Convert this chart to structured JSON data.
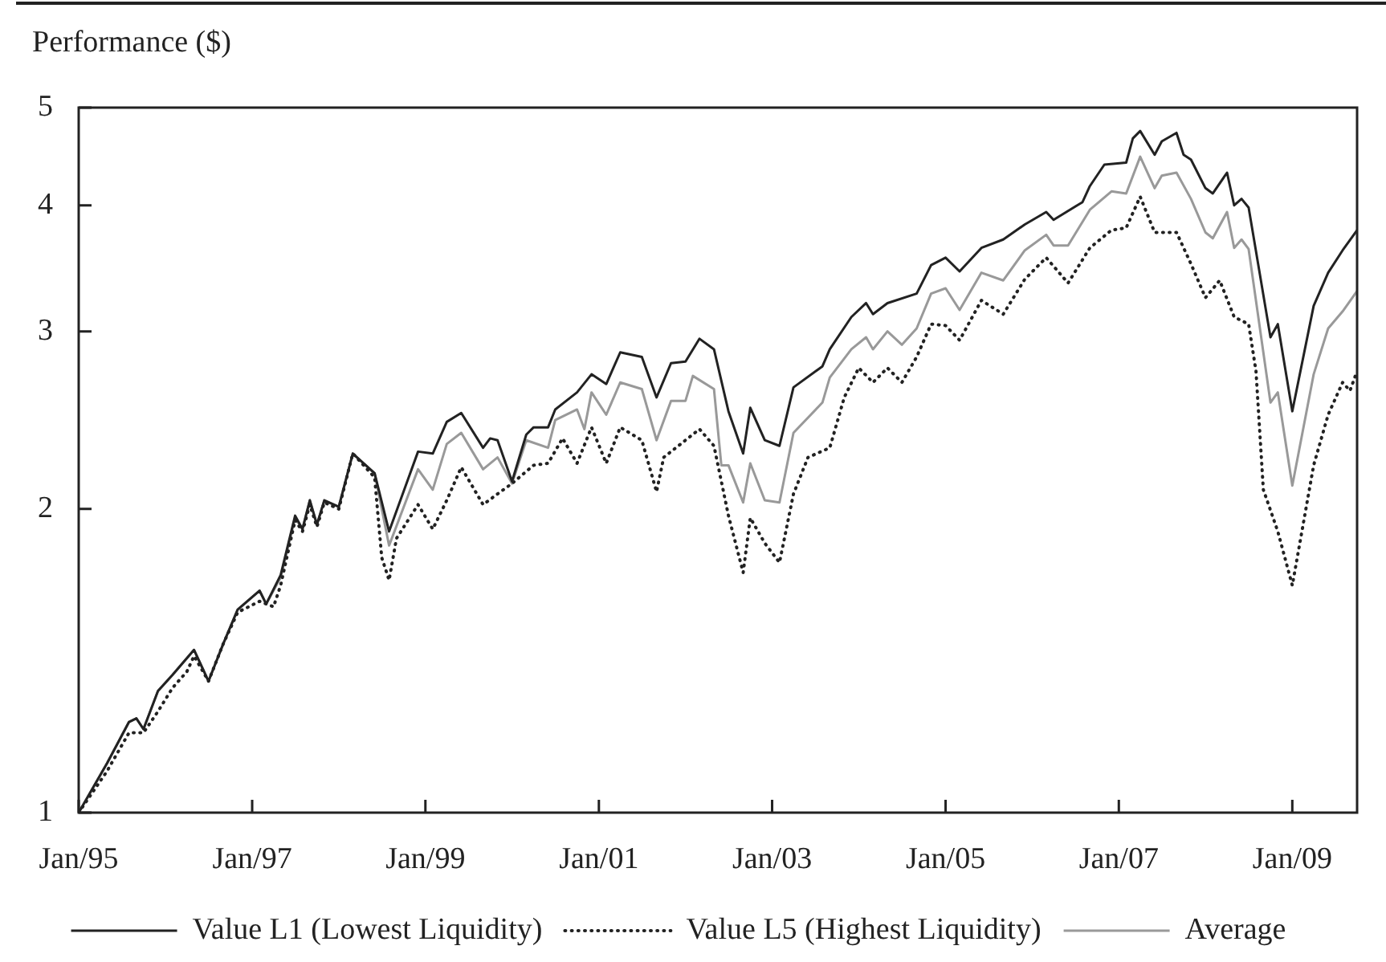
{
  "chart_data": {
    "type": "line",
    "ylabel": "Performance ($)",
    "log": "y",
    "legend": "bottom",
    "xlim": [
      "1995-01",
      "2009-10"
    ],
    "xticks": [
      {
        "value": "1995-01",
        "label": "Jan/95"
      },
      {
        "value": "1997-01",
        "label": "Jan/97"
      },
      {
        "value": "1999-01",
        "label": "Jan/99"
      },
      {
        "value": "2001-01",
        "label": "Jan/01"
      },
      {
        "value": "2003-01",
        "label": "Jan/03"
      },
      {
        "value": "2005-01",
        "label": "Jan/05"
      },
      {
        "value": "2007-01",
        "label": "Jan/07"
      },
      {
        "value": "2009-01",
        "label": "Jan/09"
      }
    ],
    "ylim": [
      1,
      5
    ],
    "yticks": [
      1,
      2,
      3,
      4,
      5
    ],
    "series": [
      {
        "name": "Value L1 (Lowest Liquidity)",
        "color": "#222222",
        "line_style": "solid",
        "x": [
          "1995-01",
          "1995-05",
          "1995-08",
          "1995-09",
          "1995-10",
          "1995-12",
          "1996-02",
          "1996-05",
          "1996-07",
          "1996-09",
          "1996-11",
          "1997-02",
          "1997-03",
          "1997-05",
          "1997-07",
          "1997-08",
          "1997-09",
          "1997-10",
          "1997-11",
          "1998-01",
          "1998-03",
          "1998-06",
          "1998-08",
          "1998-12",
          "1999-02",
          "1999-04",
          "1999-06",
          "1999-09",
          "1999-10",
          "1999-11",
          "2000-01",
          "2000-03",
          "2000-04",
          "2000-06",
          "2000-07",
          "2000-10",
          "2000-12",
          "2001-02",
          "2001-04",
          "2001-07",
          "2001-09",
          "2001-11",
          "2002-01",
          "2002-03",
          "2002-05",
          "2002-07",
          "2002-09",
          "2002-10",
          "2002-12",
          "2003-02",
          "2003-04",
          "2003-08",
          "2003-09",
          "2003-12",
          "2004-02",
          "2004-03",
          "2004-05",
          "2004-09",
          "2004-11",
          "2005-01",
          "2005-03",
          "2005-06",
          "2005-09",
          "2005-12",
          "2006-03",
          "2006-04",
          "2006-08",
          "2006-09",
          "2006-11",
          "2007-02",
          "2007-03",
          "2007-04",
          "2007-06",
          "2007-07",
          "2007-09",
          "2007-10",
          "2007-11",
          "2008-01",
          "2008-02",
          "2008-04",
          "2008-05",
          "2008-06",
          "2008-07",
          "2008-10",
          "2008-11",
          "2009-01",
          "2009-04",
          "2009-06",
          "2009-08",
          "2009-10"
        ],
        "values": [
          1.0,
          1.12,
          1.23,
          1.24,
          1.21,
          1.32,
          1.37,
          1.45,
          1.35,
          1.47,
          1.59,
          1.66,
          1.61,
          1.72,
          1.97,
          1.91,
          2.04,
          1.93,
          2.04,
          2.01,
          2.27,
          2.17,
          1.9,
          2.28,
          2.27,
          2.44,
          2.49,
          2.3,
          2.35,
          2.34,
          2.13,
          2.37,
          2.41,
          2.41,
          2.51,
          2.61,
          2.72,
          2.66,
          2.86,
          2.83,
          2.58,
          2.79,
          2.8,
          2.95,
          2.88,
          2.5,
          2.27,
          2.52,
          2.34,
          2.31,
          2.64,
          2.77,
          2.88,
          3.1,
          3.2,
          3.12,
          3.2,
          3.27,
          3.49,
          3.55,
          3.44,
          3.63,
          3.7,
          3.83,
          3.94,
          3.87,
          4.03,
          4.18,
          4.39,
          4.41,
          4.66,
          4.74,
          4.49,
          4.63,
          4.72,
          4.49,
          4.44,
          4.16,
          4.11,
          4.31,
          4.0,
          4.06,
          3.98,
          2.96,
          3.05,
          2.5,
          3.18,
          3.43,
          3.61,
          3.78
        ]
      },
      {
        "name": "Value L5 (Highest Liquidity)",
        "color": "#222222",
        "line_style": "dotted",
        "x": [
          "1995-01",
          "1995-05",
          "1995-08",
          "1995-10",
          "1995-12",
          "1996-02",
          "1996-04",
          "1996-05",
          "1996-07",
          "1996-09",
          "1996-11",
          "1997-02",
          "1997-04",
          "1997-05",
          "1997-07",
          "1997-08",
          "1997-09",
          "1997-10",
          "1997-11",
          "1998-01",
          "1998-03",
          "1998-06",
          "1998-07",
          "1998-08",
          "1998-09",
          "1998-12",
          "1999-02",
          "1999-04",
          "1999-06",
          "1999-09",
          "1999-11",
          "2000-01",
          "2000-04",
          "2000-06",
          "2000-08",
          "2000-10",
          "2000-12",
          "2001-02",
          "2001-04",
          "2001-07",
          "2001-09",
          "2001-10",
          "2002-01",
          "2002-03",
          "2002-05",
          "2002-07",
          "2002-09",
          "2002-10",
          "2002-12",
          "2003-02",
          "2003-04",
          "2003-06",
          "2003-09",
          "2003-11",
          "2004-01",
          "2004-03",
          "2004-05",
          "2004-07",
          "2004-09",
          "2004-11",
          "2005-01",
          "2005-03",
          "2005-06",
          "2005-09",
          "2005-12",
          "2006-03",
          "2006-06",
          "2006-09",
          "2006-12",
          "2007-02",
          "2007-04",
          "2007-06",
          "2007-09",
          "2007-11",
          "2008-01",
          "2008-03",
          "2008-05",
          "2008-07",
          "2008-08",
          "2008-09",
          "2008-11",
          "2009-01",
          "2009-04",
          "2009-06",
          "2009-08",
          "2009-09",
          "2009-10"
        ],
        "values": [
          1.0,
          1.1,
          1.2,
          1.2,
          1.26,
          1.33,
          1.38,
          1.43,
          1.35,
          1.47,
          1.58,
          1.62,
          1.6,
          1.68,
          1.95,
          1.9,
          2.02,
          1.92,
          2.03,
          2.0,
          2.27,
          2.15,
          1.79,
          1.7,
          1.87,
          2.02,
          1.91,
          2.04,
          2.2,
          2.02,
          2.07,
          2.12,
          2.21,
          2.22,
          2.35,
          2.22,
          2.41,
          2.22,
          2.41,
          2.34,
          2.08,
          2.25,
          2.34,
          2.4,
          2.31,
          1.97,
          1.73,
          1.96,
          1.85,
          1.77,
          2.07,
          2.25,
          2.3,
          2.58,
          2.76,
          2.67,
          2.76,
          2.67,
          2.83,
          3.05,
          3.04,
          2.94,
          3.22,
          3.12,
          3.38,
          3.55,
          3.35,
          3.63,
          3.78,
          3.8,
          4.08,
          3.76,
          3.76,
          3.5,
          3.24,
          3.37,
          3.1,
          3.05,
          2.74,
          2.09,
          1.9,
          1.68,
          2.21,
          2.48,
          2.67,
          2.62,
          2.74
        ]
      },
      {
        "name": "Average",
        "color": "#999999",
        "line_style": "solid",
        "x": [
          "1995-01",
          "1995-05",
          "1995-08",
          "1995-09",
          "1995-10",
          "1995-12",
          "1996-02",
          "1996-05",
          "1996-07",
          "1996-09",
          "1996-11",
          "1997-02",
          "1997-03",
          "1997-05",
          "1997-07",
          "1997-08",
          "1997-09",
          "1997-10",
          "1997-11",
          "1998-01",
          "1998-03",
          "1998-06",
          "1998-08",
          "1998-12",
          "1999-02",
          "1999-04",
          "1999-06",
          "1999-09",
          "1999-11",
          "2000-01",
          "2000-03",
          "2000-06",
          "2000-07",
          "2000-10",
          "2000-11",
          "2000-12",
          "2001-02",
          "2001-04",
          "2001-07",
          "2001-09",
          "2001-11",
          "2002-01",
          "2002-02",
          "2002-05",
          "2002-06",
          "2002-07",
          "2002-09",
          "2002-10",
          "2002-12",
          "2003-02",
          "2003-04",
          "2003-08",
          "2003-09",
          "2003-12",
          "2004-02",
          "2004-03",
          "2004-05",
          "2004-07",
          "2004-09",
          "2004-11",
          "2005-01",
          "2005-03",
          "2005-06",
          "2005-09",
          "2005-12",
          "2006-03",
          "2006-04",
          "2006-06",
          "2006-09",
          "2006-12",
          "2007-02",
          "2007-04",
          "2007-06",
          "2007-07",
          "2007-09",
          "2007-11",
          "2008-01",
          "2008-02",
          "2008-04",
          "2008-05",
          "2008-06",
          "2008-07",
          "2008-10",
          "2008-11",
          "2009-01",
          "2009-04",
          "2009-06",
          "2009-08",
          "2009-10"
        ],
        "values": [
          1.0,
          1.12,
          1.23,
          1.24,
          1.21,
          1.32,
          1.37,
          1.45,
          1.35,
          1.47,
          1.59,
          1.66,
          1.61,
          1.71,
          1.96,
          1.91,
          2.04,
          1.93,
          2.04,
          2.01,
          2.27,
          2.17,
          1.84,
          2.19,
          2.09,
          2.32,
          2.38,
          2.19,
          2.25,
          2.12,
          2.34,
          2.3,
          2.45,
          2.51,
          2.4,
          2.61,
          2.48,
          2.67,
          2.63,
          2.34,
          2.56,
          2.56,
          2.71,
          2.63,
          2.21,
          2.21,
          2.03,
          2.22,
          2.04,
          2.03,
          2.38,
          2.55,
          2.7,
          2.88,
          2.96,
          2.88,
          3.0,
          2.91,
          3.02,
          3.27,
          3.31,
          3.15,
          3.43,
          3.37,
          3.61,
          3.74,
          3.65,
          3.65,
          3.96,
          4.13,
          4.11,
          4.47,
          4.16,
          4.28,
          4.31,
          4.06,
          3.76,
          3.71,
          3.94,
          3.63,
          3.7,
          3.62,
          2.55,
          2.61,
          2.11,
          2.72,
          3.02,
          3.14,
          3.29
        ]
      }
    ]
  }
}
